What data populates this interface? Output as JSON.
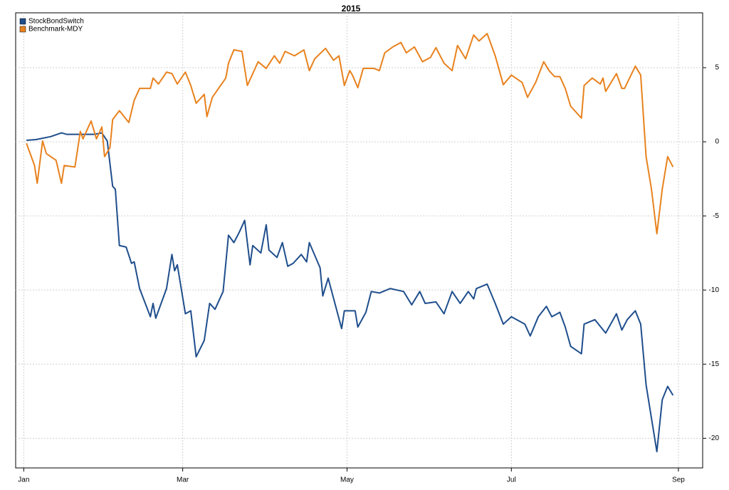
{
  "chart_data": {
    "type": "line",
    "title": "2015",
    "xlim": [
      -3,
      252
    ],
    "xticks": [
      {
        "value": 0,
        "label": "Jan"
      },
      {
        "value": 59,
        "label": "Mar"
      },
      {
        "value": 120,
        "label": "May"
      },
      {
        "value": 181,
        "label": "Jul"
      },
      {
        "value": 243,
        "label": "Sep"
      }
    ],
    "ylim": [
      -22,
      8.7
    ],
    "yticks": [
      -20,
      -15,
      -10,
      -5,
      0,
      5
    ],
    "grid": true,
    "legend": "topleft",
    "series": [
      {
        "name": "StockBondSwitch",
        "color": "#1f4e8c",
        "x": [
          1,
          4.5,
          10,
          14,
          16,
          20,
          26,
          29,
          31,
          33,
          34,
          35.5,
          38,
          40,
          41,
          43,
          47,
          48,
          49,
          53,
          55,
          56,
          57,
          60,
          62,
          64,
          67,
          69,
          71,
          74,
          76,
          78,
          80,
          82,
          84,
          85,
          88,
          90,
          91,
          94,
          96,
          98,
          100,
          103,
          105,
          106,
          110,
          111,
          113,
          118,
          119,
          123,
          124,
          127,
          129,
          132,
          136,
          141,
          144,
          147,
          149,
          153,
          156,
          159,
          162,
          165,
          167,
          168,
          172,
          175,
          178,
          181,
          186,
          188,
          191,
          194,
          196,
          199,
          201,
          203,
          207,
          208,
          212,
          216,
          220,
          222,
          224,
          227,
          229,
          231,
          235,
          237,
          239,
          241
        ],
        "values": [
          0.1,
          0.15,
          0.35,
          0.6,
          0.5,
          0.5,
          0.5,
          0.6,
          0.05,
          -3.0,
          -3.2,
          -7.0,
          -7.1,
          -8.2,
          -8.1,
          -9.9,
          -11.8,
          -10.9,
          -11.9,
          -9.9,
          -7.6,
          -8.7,
          -8.3,
          -11.6,
          -11.4,
          -14.5,
          -13.4,
          -10.9,
          -11.3,
          -10.1,
          -6.3,
          -6.8,
          -6.1,
          -5.3,
          -8.3,
          -7.0,
          -7.5,
          -5.6,
          -7.3,
          -7.8,
          -6.8,
          -8.4,
          -8.2,
          -7.6,
          -8.1,
          -6.8,
          -8.5,
          -10.4,
          -9.2,
          -12.6,
          -11.4,
          -11.4,
          -12.5,
          -11.5,
          -10.1,
          -10.2,
          -9.9,
          -10.1,
          -11.0,
          -10.1,
          -10.9,
          -10.8,
          -11.6,
          -10.1,
          -10.9,
          -10.1,
          -10.6,
          -9.9,
          -9.6,
          -10.9,
          -12.3,
          -11.8,
          -12.3,
          -13.1,
          -11.8,
          -11.1,
          -11.8,
          -11.5,
          -12.5,
          -13.8,
          -14.3,
          -12.3,
          -12.0,
          -12.9,
          -11.6,
          -12.7,
          -12.0,
          -11.4,
          -12.3,
          -16.4,
          -20.9,
          -17.4,
          -16.5,
          -17.1
        ]
      },
      {
        "name": "Benchmark-MDY",
        "color": "#e8821e",
        "x": [
          1,
          4,
          5,
          7,
          8.4,
          12,
          14,
          15,
          19,
          21,
          22,
          25,
          27,
          29,
          30,
          32,
          33,
          35.5,
          39,
          41,
          43,
          47,
          48,
          50,
          53,
          55,
          57,
          60,
          62,
          64,
          67,
          68,
          70,
          75,
          76,
          78,
          81,
          83,
          87,
          90,
          93,
          95,
          97,
          100.5,
          104,
          106,
          108,
          112,
          115,
          117,
          119,
          121,
          122,
          124,
          126,
          130,
          132,
          134,
          137,
          140,
          142,
          145,
          148,
          151,
          153,
          156,
          159,
          161,
          164,
          167,
          169,
          172,
          175,
          178,
          181,
          185,
          187,
          190,
          193,
          195,
          197,
          199,
          201,
          203,
          207,
          208,
          211,
          214,
          215,
          216,
          220,
          222,
          223,
          227,
          229,
          231,
          233,
          235,
          237,
          239,
          241
        ],
        "values": [
          -0.1,
          -1.6,
          -2.8,
          0.05,
          -0.8,
          -1.25,
          -2.8,
          -1.6,
          -1.7,
          0.7,
          0.2,
          1.4,
          0.2,
          1.0,
          -1.0,
          -0.4,
          1.5,
          2.1,
          1.3,
          2.8,
          3.6,
          3.6,
          4.3,
          3.9,
          4.7,
          4.6,
          3.9,
          4.7,
          3.8,
          2.6,
          3.2,
          1.7,
          3.0,
          4.3,
          5.3,
          6.2,
          6.1,
          3.8,
          5.4,
          4.95,
          5.8,
          5.3,
          6.1,
          5.8,
          6.2,
          4.8,
          5.6,
          6.3,
          5.5,
          5.8,
          3.8,
          4.8,
          4.5,
          3.65,
          4.95,
          4.95,
          4.8,
          6.0,
          6.4,
          6.7,
          6.0,
          6.4,
          5.4,
          5.7,
          6.35,
          5.3,
          4.8,
          6.5,
          5.6,
          7.2,
          6.8,
          7.3,
          5.8,
          3.85,
          4.5,
          4.0,
          3.0,
          4.0,
          5.4,
          4.8,
          4.4,
          4.4,
          3.6,
          2.4,
          1.6,
          3.8,
          4.3,
          3.9,
          4.3,
          3.4,
          4.6,
          3.6,
          3.6,
          5.1,
          4.5,
          -1.0,
          -3.2,
          -6.2,
          -3.2,
          -1.0,
          -1.7
        ]
      }
    ]
  }
}
